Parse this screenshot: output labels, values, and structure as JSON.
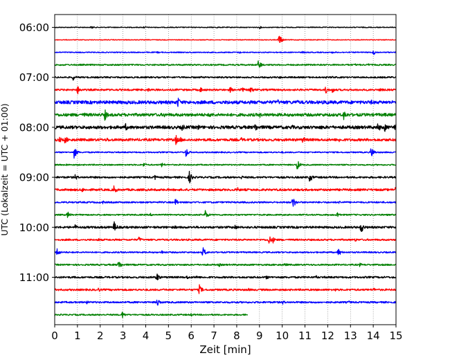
{
  "chart_data": {
    "type": "line",
    "xlabel": "Zeit  [min]",
    "ylabel": "UTC (Lokalzeit = UTC + 01:00)",
    "xlim": [
      0,
      15
    ],
    "x_ticks": [
      "0",
      "1",
      "2",
      "3",
      "4",
      "5",
      "6",
      "7",
      "8",
      "9",
      "10",
      "11",
      "12",
      "13",
      "14",
      "15"
    ],
    "y_tick_labels": [
      "06:00",
      "07:00",
      "08:00",
      "09:00",
      "10:00",
      "11:00"
    ],
    "grid": "vertical dotted",
    "line_start_time": "06:00",
    "line_interval_minutes": 15,
    "trace_colors": [
      "#000000",
      "#ff0000",
      "#0000ff",
      "#008000"
    ],
    "rows": [
      {
        "start": "06:00",
        "color": "#000000",
        "base_amp": 0.6,
        "events": [
          [
            1.6,
            2.5
          ],
          [
            3.9,
            1.8
          ],
          [
            4.0,
            1.2
          ],
          [
            7.1,
            1.5
          ],
          [
            9.0,
            2.0
          ]
        ],
        "end_minute": 15
      },
      {
        "start": "06:15",
        "color": "#ff0000",
        "base_amp": 0.5,
        "events": [
          [
            9.85,
            9.0
          ],
          [
            9.9,
            5.0
          ]
        ],
        "end_minute": 15
      },
      {
        "start": "06:30",
        "color": "#0000ff",
        "base_amp": 0.7,
        "events": [
          [
            4.5,
            1.8
          ],
          [
            6.0,
            1.5
          ],
          [
            8.1,
            2.0
          ],
          [
            10.9,
            2.2
          ],
          [
            12.2,
            1.8
          ],
          [
            14.0,
            4.5
          ]
        ],
        "end_minute": 15
      },
      {
        "start": "06:45",
        "color": "#008000",
        "base_amp": 1.0,
        "events": [
          [
            8.95,
            8.0
          ],
          [
            13.2,
            2.0
          ],
          [
            13.8,
            2.0
          ]
        ],
        "end_minute": 15
      },
      {
        "start": "07:00",
        "color": "#000000",
        "base_amp": 1.1,
        "events": [
          [
            0.8,
            5.0
          ],
          [
            6.4,
            2.0
          ],
          [
            9.9,
            2.0
          ],
          [
            12.2,
            2.5
          ],
          [
            14.8,
            2.0
          ]
        ],
        "end_minute": 15
      },
      {
        "start": "07:15",
        "color": "#ff0000",
        "base_amp": 1.3,
        "events": [
          [
            1.0,
            7.5
          ],
          [
            4.1,
            3.5
          ],
          [
            6.4,
            5.0
          ],
          [
            7.7,
            5.0
          ],
          [
            8.2,
            5.5
          ],
          [
            8.6,
            7.0
          ],
          [
            11.9,
            6.5
          ],
          [
            12.2,
            5.0
          ],
          [
            14.3,
            4.0
          ]
        ],
        "end_minute": 15
      },
      {
        "start": "07:30",
        "color": "#0000ff",
        "base_amp": 2.3,
        "events": [
          [
            5.4,
            9.0
          ],
          [
            6.0,
            3.5
          ],
          [
            7.6,
            4.0
          ],
          [
            9.8,
            4.5
          ],
          [
            10.6,
            5.5
          ],
          [
            11.9,
            6.0
          ],
          [
            13.9,
            4.0
          ]
        ],
        "end_minute": 15
      },
      {
        "start": "07:45",
        "color": "#008000",
        "base_amp": 2.1,
        "events": [
          [
            1.3,
            4.0
          ],
          [
            2.2,
            9.0
          ],
          [
            4.8,
            4.0
          ],
          [
            6.8,
            5.5
          ],
          [
            9.0,
            4.5
          ],
          [
            10.5,
            3.5
          ],
          [
            12.7,
            9.0
          ],
          [
            14.5,
            4.0
          ]
        ],
        "end_minute": 15
      },
      {
        "start": "08:00",
        "color": "#000000",
        "base_amp": 2.2,
        "events": [
          [
            3.1,
            6.5
          ],
          [
            5.6,
            6.0
          ],
          [
            6.3,
            5.0
          ],
          [
            8.8,
            8.0
          ],
          [
            10.4,
            5.0
          ],
          [
            11.7,
            4.5
          ],
          [
            14.2,
            8.0
          ],
          [
            14.5,
            7.0
          ],
          [
            14.95,
            10.0
          ]
        ],
        "end_minute": 15
      },
      {
        "start": "08:15",
        "color": "#ff0000",
        "base_amp": 1.8,
        "events": [
          [
            0.2,
            5.0
          ],
          [
            0.45,
            7.0
          ],
          [
            2.3,
            4.0
          ],
          [
            5.3,
            9.0
          ],
          [
            5.5,
            5.0
          ],
          [
            8.2,
            4.0
          ],
          [
            10.9,
            6.0
          ],
          [
            12.5,
            3.5
          ]
        ],
        "end_minute": 15
      },
      {
        "start": "08:30",
        "color": "#0000ff",
        "base_amp": 0.9,
        "events": [
          [
            0.85,
            9.0
          ],
          [
            5.75,
            8.0
          ],
          [
            13.9,
            9.0
          ],
          [
            10.0,
            2.0
          ]
        ],
        "end_minute": 15
      },
      {
        "start": "08:45",
        "color": "#008000",
        "base_amp": 0.9,
        "events": [
          [
            3.9,
            4.0
          ],
          [
            4.7,
            4.0
          ],
          [
            10.65,
            8.0
          ],
          [
            0.5,
            2.0
          ]
        ],
        "end_minute": 15
      },
      {
        "start": "09:00",
        "color": "#000000",
        "base_amp": 1.3,
        "events": [
          [
            0.9,
            5.0
          ],
          [
            4.4,
            4.0
          ],
          [
            5.9,
            11.0
          ],
          [
            11.2,
            8.0
          ],
          [
            8.2,
            3.0
          ]
        ],
        "end_minute": 15
      },
      {
        "start": "09:15",
        "color": "#ff0000",
        "base_amp": 1.5,
        "events": [
          [
            2.6,
            7.0
          ],
          [
            1.2,
            4.0
          ],
          [
            8.0,
            5.0
          ],
          [
            10.2,
            3.0
          ],
          [
            14.95,
            9.0
          ]
        ],
        "end_minute": 15
      },
      {
        "start": "09:30",
        "color": "#0000ff",
        "base_amp": 1.1,
        "events": [
          [
            5.3,
            6.0
          ],
          [
            10.45,
            10.0
          ],
          [
            2.1,
            3.0
          ],
          [
            12.5,
            3.0
          ]
        ],
        "end_minute": 15
      },
      {
        "start": "09:45",
        "color": "#008000",
        "base_amp": 1.0,
        "events": [
          [
            0.55,
            6.0
          ],
          [
            6.6,
            8.0
          ],
          [
            12.4,
            6.0
          ],
          [
            4.2,
            2.5
          ]
        ],
        "end_minute": 15
      },
      {
        "start": "10:00",
        "color": "#000000",
        "base_amp": 1.5,
        "events": [
          [
            2.6,
            10.0
          ],
          [
            7.9,
            5.0
          ],
          [
            13.45,
            10.0
          ],
          [
            0.9,
            4.5
          ],
          [
            5.3,
            3.0
          ]
        ],
        "end_minute": 15
      },
      {
        "start": "10:15",
        "color": "#ff0000",
        "base_amp": 1.2,
        "events": [
          [
            3.7,
            5.0
          ],
          [
            9.4,
            8.0
          ],
          [
            9.6,
            5.0
          ],
          [
            1.9,
            3.0
          ],
          [
            13.2,
            3.0
          ]
        ],
        "end_minute": 15
      },
      {
        "start": "10:30",
        "color": "#0000ff",
        "base_amp": 1.0,
        "events": [
          [
            0.1,
            7.0
          ],
          [
            6.5,
            9.0
          ],
          [
            12.45,
            7.0
          ],
          [
            4.7,
            3.0
          ]
        ],
        "end_minute": 15
      },
      {
        "start": "10:45",
        "color": "#008000",
        "base_amp": 1.1,
        "events": [
          [
            2.8,
            8.0
          ],
          [
            7.2,
            3.5
          ],
          [
            10.1,
            3.5
          ],
          [
            13.4,
            3.0
          ]
        ],
        "end_minute": 15
      },
      {
        "start": "11:00",
        "color": "#000000",
        "base_amp": 1.3,
        "events": [
          [
            4.45,
            9.0
          ],
          [
            5.8,
            4.0
          ],
          [
            6.2,
            4.0
          ],
          [
            9.3,
            3.5
          ],
          [
            11.5,
            3.0
          ]
        ],
        "end_minute": 15
      },
      {
        "start": "11:15",
        "color": "#ff0000",
        "base_amp": 1.3,
        "events": [
          [
            1.9,
            4.0
          ],
          [
            6.35,
            8.0
          ],
          [
            8.5,
            3.0
          ],
          [
            12.3,
            3.0
          ],
          [
            14.0,
            3.5
          ]
        ],
        "end_minute": 15
      },
      {
        "start": "11:30",
        "color": "#0000ff",
        "base_amp": 1.2,
        "events": [
          [
            4.5,
            7.0
          ],
          [
            10.0,
            4.0
          ],
          [
            12.9,
            3.0
          ],
          [
            1.4,
            3.0
          ]
        ],
        "end_minute": 15
      },
      {
        "start": "11:45",
        "color": "#008000",
        "base_amp": 1.0,
        "events": [
          [
            2.95,
            6.0
          ],
          [
            6.0,
            3.0
          ]
        ],
        "end_minute": 8.5
      }
    ]
  }
}
